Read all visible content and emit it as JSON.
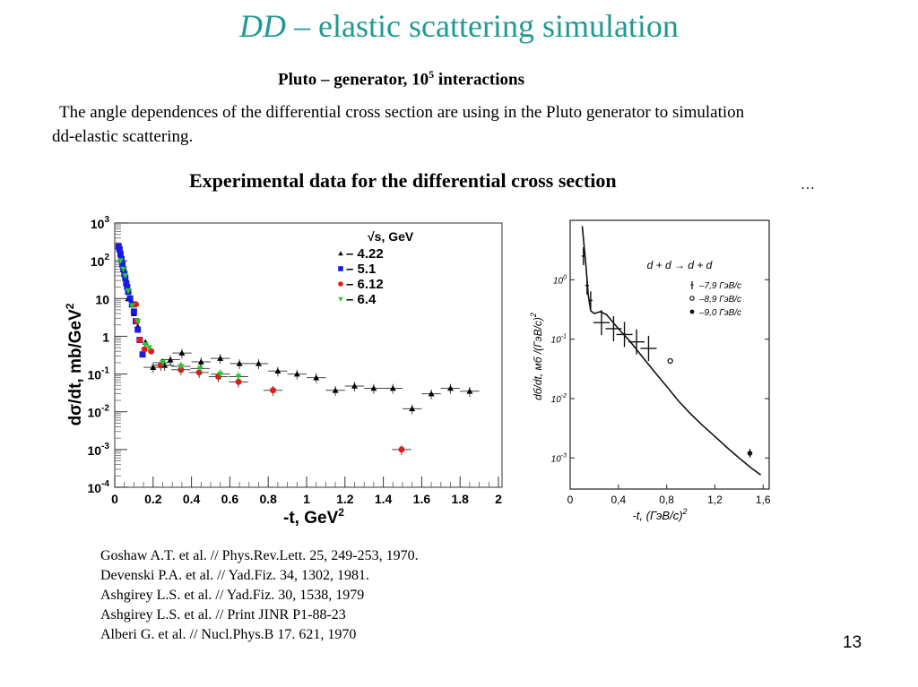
{
  "slide": {
    "title_italic": "DD",
    "title_rest": " – elastic scattering simulation",
    "subtitle_pre": "Pluto – generator, 10",
    "subtitle_sup": "5",
    "subtitle_post": " interactions",
    "paragraph_line1": "The angle dependences of the differential cross section are using in the Pluto generator to simulation",
    "paragraph_line2": "dd-elastic scattering.",
    "exp_heading": "Experimental data for the differential cross section",
    "ellipsis": "…",
    "references": [
      "Goshaw A.T. et al. // Phys.Rev.Lett. 25, 249-253, 1970.",
      "Devenski P.A. et al. // Yad.Fiz. 34, 1302, 1981.",
      "Ashgirey L.S. et al. // Yad.Fiz. 30, 1538, 1979",
      "Ashgirey L.S. et al. // Print JINR P1-88-23",
      "Alberi G. et al. // Nucl.Phys.B 17. 621, 1970"
    ],
    "page_number": "13"
  },
  "chart_data": [
    {
      "type": "scatter",
      "title": "",
      "xlabel": "-t,  GeV",
      "xlabel_sup": "2",
      "ylabel": "dσ/dt,  mb/GeV",
      "ylabel_sup": "2",
      "xlim": [
        0,
        2
      ],
      "ylim": [
        0.0001,
        1000
      ],
      "yscale": "log",
      "grid": false,
      "x_ticks": [
        "0",
        "0.2",
        "0.4",
        "0.6",
        "0.8",
        "1",
        "1.2",
        "1.4",
        "1.6",
        "1.8",
        "2"
      ],
      "y_ticks": [
        {
          "base": "10",
          "exp": "3"
        },
        {
          "base": "10",
          "exp": "2"
        },
        {
          "base": "10",
          "exp": ""
        },
        {
          "base": "1",
          "exp": ""
        },
        {
          "base": "10",
          "exp": "-1"
        },
        {
          "base": "10",
          "exp": "-2"
        },
        {
          "base": "10",
          "exp": "-3"
        },
        {
          "base": "10",
          "exp": "-4"
        }
      ],
      "legend_title": "√s,  GeV",
      "legend_position": "top-right",
      "series": [
        {
          "name": "– 4.22",
          "marker": "triangle-up",
          "color": "#000000",
          "points": [
            [
              0.07,
              10
            ],
            [
              0.1,
              4
            ],
            [
              0.12,
              1.8
            ],
            [
              0.16,
              0.7
            ],
            [
              0.2,
              0.15
            ],
            [
              0.26,
              0.17
            ],
            [
              0.29,
              0.24
            ],
            [
              0.35,
              0.36
            ],
            [
              0.45,
              0.21
            ],
            [
              0.55,
              0.26
            ],
            [
              0.65,
              0.19
            ],
            [
              0.75,
              0.19
            ],
            [
              0.85,
              0.12
            ],
            [
              0.95,
              0.1
            ],
            [
              1.05,
              0.08
            ],
            [
              1.15,
              0.037
            ],
            [
              1.25,
              0.048
            ],
            [
              1.35,
              0.042
            ],
            [
              1.45,
              0.042
            ],
            [
              1.55,
              0.012
            ],
            [
              1.65,
              0.03
            ],
            [
              1.75,
              0.042
            ],
            [
              1.85,
              0.035
            ]
          ]
        },
        {
          "name": "– 5.1",
          "marker": "square",
          "color": "#1a1ae6",
          "points": [
            [
              0.02,
              240
            ],
            [
              0.025,
              200
            ],
            [
              0.03,
              150
            ],
            [
              0.035,
              110
            ],
            [
              0.04,
              80
            ],
            [
              0.045,
              60
            ],
            [
              0.05,
              45
            ],
            [
              0.055,
              35
            ],
            [
              0.06,
              25
            ],
            [
              0.065,
              20
            ],
            [
              0.07,
              15
            ],
            [
              0.08,
              10
            ],
            [
              0.09,
              7
            ],
            [
              0.1,
              4.5
            ],
            [
              0.11,
              2.5
            ],
            [
              0.12,
              1.5
            ],
            [
              0.13,
              0.8
            ],
            [
              0.145,
              0.33
            ]
          ]
        },
        {
          "name": "– 6.12",
          "marker": "circle",
          "color": "#e61a1a",
          "points": [
            [
              0.11,
              7
            ],
            [
              0.115,
              2.5
            ],
            [
              0.13,
              0.8
            ],
            [
              0.155,
              0.45
            ],
            [
              0.19,
              0.4
            ],
            [
              0.24,
              0.17
            ],
            [
              0.345,
              0.13
            ],
            [
              0.44,
              0.11
            ],
            [
              0.54,
              0.085
            ],
            [
              0.645,
              0.062
            ],
            [
              0.825,
              0.037
            ],
            [
              1.495,
              0.001
            ]
          ]
        },
        {
          "name": "– 6.4",
          "marker": "triangle-down",
          "color": "#22cc22",
          "points": [
            [
              0.03,
              100
            ],
            [
              0.045,
              60
            ],
            [
              0.055,
              40
            ],
            [
              0.07,
              16
            ],
            [
              0.09,
              6.5
            ],
            [
              0.12,
              2.5
            ],
            [
              0.16,
              0.6
            ],
            [
              0.18,
              0.5
            ],
            [
              0.25,
              0.2
            ],
            [
              0.345,
              0.16
            ],
            [
              0.445,
              0.14
            ],
            [
              0.55,
              0.1
            ],
            [
              0.645,
              0.085
            ]
          ]
        }
      ]
    },
    {
      "type": "line",
      "title": "d + d → d + d",
      "xlabel": "-t, (ГэВ/c)",
      "xlabel_sup": "2",
      "ylabel": "dб/dt, мб  /(ГэВ/c)",
      "ylabel_sup": "2",
      "xlim": [
        0,
        1.65
      ],
      "ylim": [
        0.0003,
        10
      ],
      "yscale": "log",
      "x_ticks": [
        "0",
        "0,4",
        "0,8",
        "1,2",
        "1,6"
      ],
      "y_ticks": [
        {
          "base": "10",
          "exp": "0"
        },
        {
          "base": "10",
          "exp": "-1"
        },
        {
          "base": "10",
          "exp": "-2"
        },
        {
          "base": "10",
          "exp": "-3"
        }
      ],
      "legend_position": "right",
      "curve": [
        [
          0.1,
          8
        ],
        [
          0.13,
          1.8
        ],
        [
          0.15,
          0.55
        ],
        [
          0.17,
          0.3
        ],
        [
          0.2,
          0.27
        ],
        [
          0.25,
          0.29
        ],
        [
          0.3,
          0.26
        ],
        [
          0.4,
          0.15
        ],
        [
          0.5,
          0.09
        ],
        [
          0.6,
          0.05
        ],
        [
          0.7,
          0.028
        ],
        [
          0.8,
          0.016
        ],
        [
          0.9,
          0.009
        ],
        [
          1.0,
          0.0055
        ],
        [
          1.1,
          0.0035
        ],
        [
          1.2,
          0.0023
        ],
        [
          1.3,
          0.0015
        ],
        [
          1.4,
          0.001
        ],
        [
          1.5,
          0.00068
        ],
        [
          1.58,
          0.00052
        ]
      ],
      "series": [
        {
          "name": "–7,9 ГэВ/c",
          "marker": "plus",
          "points": [
            [
              0.11,
              2.5
            ],
            [
              0.14,
              0.8
            ],
            [
              0.17,
              0.45
            ],
            [
              0.26,
              0.19
            ],
            [
              0.36,
              0.15
            ],
            [
              0.45,
              0.12
            ],
            [
              0.55,
              0.09
            ],
            [
              0.65,
              0.07
            ]
          ]
        },
        {
          "name": "–8,9 ГэВ/c",
          "marker": "open-circle",
          "points": [
            [
              0.83,
              0.043
            ]
          ]
        },
        {
          "name": "–9,0 ГэВ/c",
          "marker": "filled-circle",
          "points": [
            [
              1.49,
              0.0012
            ]
          ]
        }
      ]
    }
  ]
}
